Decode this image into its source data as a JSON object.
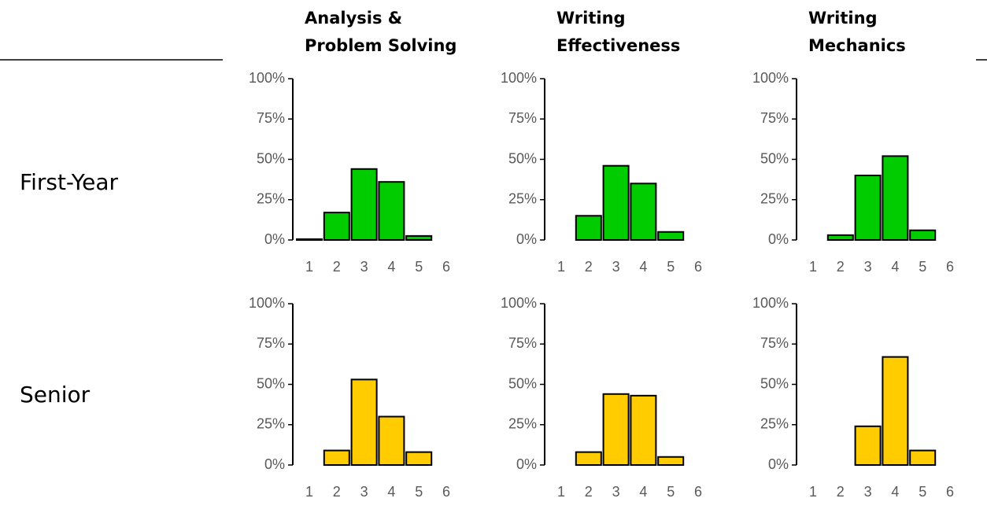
{
  "columns": [
    [
      "Analysis &",
      "Problem Solving"
    ],
    [
      "Writing",
      "Effectiveness"
    ],
    [
      "Writing",
      "Mechanics"
    ]
  ],
  "rows": [
    "First-Year",
    "Senior"
  ],
  "chart_data": [
    {
      "type": "bar",
      "x": [
        1,
        2,
        3,
        4,
        5
      ],
      "values": [
        0.5,
        17,
        44,
        36,
        2.5
      ],
      "color": "#00cc00",
      "xlim": [
        0.5,
        6.5
      ],
      "xticks": [
        1,
        2,
        3,
        4,
        5,
        6
      ],
      "ylim": [
        0,
        100
      ],
      "yticks": [
        {
          "value": 0,
          "label": "0%"
        },
        {
          "value": 25,
          "label": "25%"
        },
        {
          "value": 50,
          "label": "50%"
        },
        {
          "value": 75,
          "label": "75%"
        },
        {
          "value": 100,
          "label": "100%"
        }
      ]
    },
    {
      "type": "bar",
      "x": [
        1,
        2,
        3,
        4,
        5
      ],
      "values": [
        null,
        15,
        46,
        35,
        5
      ],
      "color": "#00cc00",
      "xlim": [
        0.5,
        6.5
      ],
      "xticks": [
        1,
        2,
        3,
        4,
        5,
        6
      ],
      "ylim": [
        0,
        100
      ],
      "yticks": [
        {
          "value": 0,
          "label": "0%"
        },
        {
          "value": 25,
          "label": "25%"
        },
        {
          "value": 50,
          "label": "50%"
        },
        {
          "value": 75,
          "label": "75%"
        },
        {
          "value": 100,
          "label": "100%"
        }
      ]
    },
    {
      "type": "bar",
      "x": [
        1,
        2,
        3,
        4,
        5
      ],
      "values": [
        null,
        3,
        40,
        52,
        6
      ],
      "color": "#00cc00",
      "xlim": [
        0.5,
        6.5
      ],
      "xticks": [
        1,
        2,
        3,
        4,
        5,
        6
      ],
      "ylim": [
        0,
        100
      ],
      "yticks": [
        {
          "value": 0,
          "label": "0%"
        },
        {
          "value": 25,
          "label": "25%"
        },
        {
          "value": 50,
          "label": "50%"
        },
        {
          "value": 75,
          "label": "75%"
        },
        {
          "value": 100,
          "label": "100%"
        }
      ]
    },
    {
      "type": "bar",
      "x": [
        1,
        2,
        3,
        4,
        5
      ],
      "values": [
        null,
        9,
        53,
        30,
        8
      ],
      "color": "#ffcc00",
      "xlim": [
        0.5,
        6.5
      ],
      "xticks": [
        1,
        2,
        3,
        4,
        5,
        6
      ],
      "ylim": [
        0,
        100
      ],
      "yticks": [
        {
          "value": 0,
          "label": "0%"
        },
        {
          "value": 25,
          "label": "25%"
        },
        {
          "value": 50,
          "label": "50%"
        },
        {
          "value": 75,
          "label": "75%"
        },
        {
          "value": 100,
          "label": "100%"
        }
      ]
    },
    {
      "type": "bar",
      "x": [
        1,
        2,
        3,
        4,
        5
      ],
      "values": [
        null,
        8,
        44,
        43,
        5
      ],
      "color": "#ffcc00",
      "xlim": [
        0.5,
        6.5
      ],
      "xticks": [
        1,
        2,
        3,
        4,
        5,
        6
      ],
      "ylim": [
        0,
        100
      ],
      "yticks": [
        {
          "value": 0,
          "label": "0%"
        },
        {
          "value": 25,
          "label": "25%"
        },
        {
          "value": 50,
          "label": "50%"
        },
        {
          "value": 75,
          "label": "75%"
        },
        {
          "value": 100,
          "label": "100%"
        }
      ]
    },
    {
      "type": "bar",
      "x": [
        1,
        2,
        3,
        4,
        5
      ],
      "values": [
        null,
        null,
        24,
        67,
        9
      ],
      "color": "#ffcc00",
      "xlim": [
        0.5,
        6.5
      ],
      "xticks": [
        1,
        2,
        3,
        4,
        5,
        6
      ],
      "ylim": [
        0,
        100
      ],
      "yticks": [
        {
          "value": 0,
          "label": "0%"
        },
        {
          "value": 25,
          "label": "25%"
        },
        {
          "value": 50,
          "label": "50%"
        },
        {
          "value": 75,
          "label": "75%"
        },
        {
          "value": 100,
          "label": "100%"
        }
      ]
    }
  ]
}
